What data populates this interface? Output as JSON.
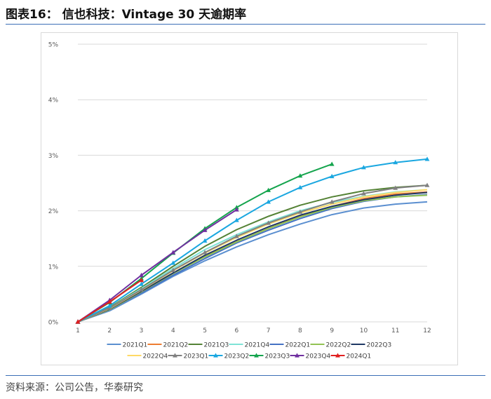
{
  "figure": {
    "title": "图表16：  信也科技：Vintage 30 天逾期率",
    "source": "资料来源：公司公告，华泰研究"
  },
  "colors": {
    "rule": "#3b6fb6",
    "grid": "#d9d9d9"
  },
  "chart_data": {
    "type": "line",
    "title": "",
    "xlabel": "",
    "ylabel": "",
    "x": [
      1,
      2,
      3,
      4,
      5,
      6,
      7,
      8,
      9,
      10,
      11,
      12
    ],
    "x_tick_labels": [
      "1",
      "2",
      "3",
      "4",
      "5",
      "6",
      "7",
      "8",
      "9",
      "10",
      "11",
      "12"
    ],
    "ylim": [
      0,
      5
    ],
    "y_ticks": [
      0,
      1,
      2,
      3,
      4,
      5
    ],
    "y_tick_labels": [
      "0%",
      "1%",
      "2%",
      "3%",
      "4%",
      "5%"
    ],
    "grid": "horizontal",
    "legend_position": "bottom",
    "series": [
      {
        "name": "2021Q1",
        "color": "#5b8fd0",
        "marker": "none",
        "values": [
          0,
          0.2,
          0.5,
          0.82,
          1.1,
          1.35,
          1.57,
          1.76,
          1.93,
          2.05,
          2.12,
          2.16
        ]
      },
      {
        "name": "2021Q2",
        "color": "#ed7d31",
        "marker": "none",
        "values": [
          0,
          0.22,
          0.54,
          0.88,
          1.18,
          1.44,
          1.68,
          1.9,
          2.08,
          2.22,
          2.3,
          2.34
        ]
      },
      {
        "name": "2021Q3",
        "color": "#548235",
        "marker": "none",
        "values": [
          0,
          0.26,
          0.62,
          1.0,
          1.36,
          1.66,
          1.9,
          2.1,
          2.25,
          2.36,
          2.42,
          2.46
        ]
      },
      {
        "name": "2021Q4",
        "color": "#7fe3d6",
        "marker": "none",
        "values": [
          0,
          0.25,
          0.6,
          0.96,
          1.3,
          1.57,
          1.8,
          2.0,
          2.15,
          2.26,
          2.34,
          2.38
        ]
      },
      {
        "name": "2022Q1",
        "color": "#4472c4",
        "marker": "none",
        "values": [
          0,
          0.22,
          0.52,
          0.84,
          1.14,
          1.42,
          1.65,
          1.86,
          2.04,
          2.17,
          2.25,
          2.29
        ]
      },
      {
        "name": "2022Q2",
        "color": "#92c353",
        "marker": "none",
        "values": [
          0,
          0.22,
          0.54,
          0.87,
          1.17,
          1.44,
          1.68,
          1.89,
          2.06,
          2.18,
          2.25,
          2.28
        ]
      },
      {
        "name": "2022Q3",
        "color": "#1f3864",
        "marker": "none",
        "values": [
          0,
          0.23,
          0.55,
          0.88,
          1.2,
          1.47,
          1.71,
          1.92,
          2.08,
          2.2,
          2.28,
          2.33
        ]
      },
      {
        "name": "2022Q4",
        "color": "#ffd966",
        "marker": "none",
        "values": [
          0,
          0.24,
          0.57,
          0.92,
          1.24,
          1.52,
          1.76,
          1.96,
          2.12,
          2.25,
          2.33,
          2.38
        ]
      },
      {
        "name": "2023Q1",
        "color": "#808080",
        "marker": "triangle",
        "values": [
          0,
          0.25,
          0.58,
          0.93,
          1.25,
          1.54,
          1.78,
          1.98,
          2.16,
          2.31,
          2.41,
          2.46
        ]
      },
      {
        "name": "2023Q2",
        "color": "#1aa7e0",
        "marker": "triangle",
        "values": [
          0,
          0.29,
          0.68,
          1.06,
          1.46,
          1.83,
          2.16,
          2.42,
          2.62,
          2.78,
          2.87,
          2.93
        ]
      },
      {
        "name": "2023Q3",
        "color": "#14a44d",
        "marker": "triangle",
        "values": [
          0,
          0.35,
          0.78,
          1.24,
          1.68,
          2.06,
          2.37,
          2.63,
          2.84,
          null,
          null,
          null
        ]
      },
      {
        "name": "2023Q4",
        "color": "#7030a0",
        "marker": "triangle",
        "values": [
          0,
          0.39,
          0.84,
          1.25,
          1.65,
          2.02,
          null,
          null,
          null,
          null,
          null,
          null
        ]
      },
      {
        "name": "2024Q1",
        "color": "#e02020",
        "marker": "triangle",
        "values": [
          0,
          0.36,
          0.75,
          null,
          null,
          null,
          null,
          null,
          null,
          null,
          null,
          null
        ]
      }
    ]
  }
}
